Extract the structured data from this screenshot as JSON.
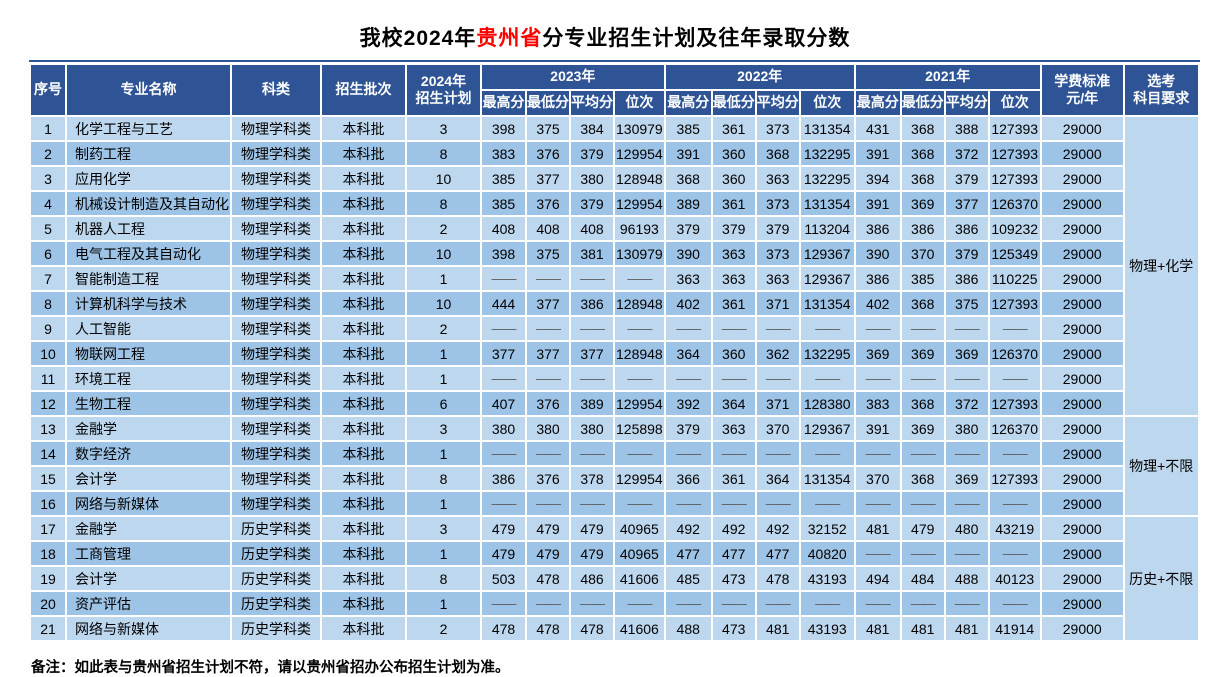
{
  "title": {
    "prefix": "我校2024年",
    "highlight": "贵州省",
    "suffix": "分专业招生计划及往年录取分数"
  },
  "footnote": "备注：如此表与贵州省招生计划不符，请以贵州省招办公布招生计划为准。",
  "colors": {
    "header_bg": "#2F5496",
    "row_light": "#BDD7EE",
    "row_dark": "#9DC3E6",
    "title_highlight": "#FF0000",
    "dash_text": "#595959"
  },
  "table": {
    "dash": "——",
    "headers": {
      "seq": "序号",
      "major": "专业名称",
      "category": "科类",
      "batch": "招生批次",
      "plan_line1": "2024年",
      "plan_line2": "招生计划",
      "year_groups": [
        "2023年",
        "2022年",
        "2021年"
      ],
      "score_cols": [
        "最高分",
        "最低分",
        "平均分",
        "位次"
      ],
      "tuition_line1": "学费标准",
      "tuition_line2": "元/年",
      "subject_line1": "选考",
      "subject_line2": "科目要求"
    },
    "subject_groups": [
      {
        "row_start": 1,
        "row_span": 12,
        "label": "物理+化学"
      },
      {
        "row_start": 13,
        "row_span": 4,
        "label": "物理+不限"
      },
      {
        "row_start": 17,
        "row_span": 5,
        "label": "历史+不限"
      }
    ],
    "rows": [
      {
        "seq": "1",
        "major": "化学工程与工艺",
        "category": "物理学科类",
        "batch": "本科批",
        "plan": "3",
        "y2023": [
          "398",
          "375",
          "384",
          "130979"
        ],
        "y2022": [
          "385",
          "361",
          "373",
          "131354"
        ],
        "y2021": [
          "431",
          "368",
          "388",
          "127393"
        ],
        "tuition": "29000"
      },
      {
        "seq": "2",
        "major": "制药工程",
        "category": "物理学科类",
        "batch": "本科批",
        "plan": "8",
        "y2023": [
          "383",
          "376",
          "379",
          "129954"
        ],
        "y2022": [
          "391",
          "360",
          "368",
          "132295"
        ],
        "y2021": [
          "391",
          "368",
          "372",
          "127393"
        ],
        "tuition": "29000"
      },
      {
        "seq": "3",
        "major": "应用化学",
        "category": "物理学科类",
        "batch": "本科批",
        "plan": "10",
        "y2023": [
          "385",
          "377",
          "380",
          "128948"
        ],
        "y2022": [
          "368",
          "360",
          "363",
          "132295"
        ],
        "y2021": [
          "394",
          "368",
          "379",
          "127393"
        ],
        "tuition": "29000"
      },
      {
        "seq": "4",
        "major": "机械设计制造及其自动化",
        "category": "物理学科类",
        "batch": "本科批",
        "plan": "8",
        "y2023": [
          "385",
          "376",
          "379",
          "129954"
        ],
        "y2022": [
          "389",
          "361",
          "373",
          "131354"
        ],
        "y2021": [
          "391",
          "369",
          "377",
          "126370"
        ],
        "tuition": "29000"
      },
      {
        "seq": "5",
        "major": "机器人工程",
        "category": "物理学科类",
        "batch": "本科批",
        "plan": "2",
        "y2023": [
          "408",
          "408",
          "408",
          "96193"
        ],
        "y2022": [
          "379",
          "379",
          "379",
          "113204"
        ],
        "y2021": [
          "386",
          "386",
          "386",
          "109232"
        ],
        "tuition": "29000"
      },
      {
        "seq": "6",
        "major": "电气工程及其自动化",
        "category": "物理学科类",
        "batch": "本科批",
        "plan": "10",
        "y2023": [
          "398",
          "375",
          "381",
          "130979"
        ],
        "y2022": [
          "390",
          "363",
          "373",
          "129367"
        ],
        "y2021": [
          "390",
          "370",
          "379",
          "125349"
        ],
        "tuition": "29000"
      },
      {
        "seq": "7",
        "major": "智能制造工程",
        "category": "物理学科类",
        "batch": "本科批",
        "plan": "1",
        "y2023": [
          "——",
          "——",
          "——",
          "——"
        ],
        "y2022": [
          "363",
          "363",
          "363",
          "129367"
        ],
        "y2021": [
          "386",
          "385",
          "386",
          "110225"
        ],
        "tuition": "29000"
      },
      {
        "seq": "8",
        "major": "计算机科学与技术",
        "category": "物理学科类",
        "batch": "本科批",
        "plan": "10",
        "y2023": [
          "444",
          "377",
          "386",
          "128948"
        ],
        "y2022": [
          "402",
          "361",
          "371",
          "131354"
        ],
        "y2021": [
          "402",
          "368",
          "375",
          "127393"
        ],
        "tuition": "29000"
      },
      {
        "seq": "9",
        "major": "人工智能",
        "category": "物理学科类",
        "batch": "本科批",
        "plan": "2",
        "y2023": [
          "——",
          "——",
          "——",
          "——"
        ],
        "y2022": [
          "——",
          "——",
          "——",
          "——"
        ],
        "y2021": [
          "——",
          "——",
          "——",
          "——"
        ],
        "tuition": "29000"
      },
      {
        "seq": "10",
        "major": "物联网工程",
        "category": "物理学科类",
        "batch": "本科批",
        "plan": "1",
        "y2023": [
          "377",
          "377",
          "377",
          "128948"
        ],
        "y2022": [
          "364",
          "360",
          "362",
          "132295"
        ],
        "y2021": [
          "369",
          "369",
          "369",
          "126370"
        ],
        "tuition": "29000"
      },
      {
        "seq": "11",
        "major": "环境工程",
        "category": "物理学科类",
        "batch": "本科批",
        "plan": "1",
        "y2023": [
          "——",
          "——",
          "——",
          "——"
        ],
        "y2022": [
          "——",
          "——",
          "——",
          "——"
        ],
        "y2021": [
          "——",
          "——",
          "——",
          "——"
        ],
        "tuition": "29000"
      },
      {
        "seq": "12",
        "major": "生物工程",
        "category": "物理学科类",
        "batch": "本科批",
        "plan": "6",
        "y2023": [
          "407",
          "376",
          "389",
          "129954"
        ],
        "y2022": [
          "392",
          "364",
          "371",
          "128380"
        ],
        "y2021": [
          "383",
          "368",
          "372",
          "127393"
        ],
        "tuition": "29000"
      },
      {
        "seq": "13",
        "major": "金融学",
        "category": "物理学科类",
        "batch": "本科批",
        "plan": "3",
        "y2023": [
          "380",
          "380",
          "380",
          "125898"
        ],
        "y2022": [
          "379",
          "363",
          "370",
          "129367"
        ],
        "y2021": [
          "391",
          "369",
          "380",
          "126370"
        ],
        "tuition": "29000"
      },
      {
        "seq": "14",
        "major": "数字经济",
        "category": "物理学科类",
        "batch": "本科批",
        "plan": "1",
        "y2023": [
          "——",
          "——",
          "——",
          "——"
        ],
        "y2022": [
          "——",
          "——",
          "——",
          "——"
        ],
        "y2021": [
          "——",
          "——",
          "——",
          "——"
        ],
        "tuition": "29000"
      },
      {
        "seq": "15",
        "major": "会计学",
        "category": "物理学科类",
        "batch": "本科批",
        "plan": "8",
        "y2023": [
          "386",
          "376",
          "378",
          "129954"
        ],
        "y2022": [
          "366",
          "361",
          "364",
          "131354"
        ],
        "y2021": [
          "370",
          "368",
          "369",
          "127393"
        ],
        "tuition": "29000"
      },
      {
        "seq": "16",
        "major": "网络与新媒体",
        "category": "物理学科类",
        "batch": "本科批",
        "plan": "1",
        "y2023": [
          "——",
          "——",
          "——",
          "——"
        ],
        "y2022": [
          "——",
          "——",
          "——",
          "——"
        ],
        "y2021": [
          "——",
          "——",
          "——",
          "——"
        ],
        "tuition": "29000"
      },
      {
        "seq": "17",
        "major": "金融学",
        "category": "历史学科类",
        "batch": "本科批",
        "plan": "3",
        "y2023": [
          "479",
          "479",
          "479",
          "40965"
        ],
        "y2022": [
          "492",
          "492",
          "492",
          "32152"
        ],
        "y2021": [
          "481",
          "479",
          "480",
          "43219"
        ],
        "tuition": "29000"
      },
      {
        "seq": "18",
        "major": "工商管理",
        "category": "历史学科类",
        "batch": "本科批",
        "plan": "1",
        "y2023": [
          "479",
          "479",
          "479",
          "40965"
        ],
        "y2022": [
          "477",
          "477",
          "477",
          "40820"
        ],
        "y2021": [
          "——",
          "——",
          "——",
          "——"
        ],
        "tuition": "29000"
      },
      {
        "seq": "19",
        "major": "会计学",
        "category": "历史学科类",
        "batch": "本科批",
        "plan": "8",
        "y2023": [
          "503",
          "478",
          "486",
          "41606"
        ],
        "y2022": [
          "485",
          "473",
          "478",
          "43193"
        ],
        "y2021": [
          "494",
          "484",
          "488",
          "40123"
        ],
        "tuition": "29000"
      },
      {
        "seq": "20",
        "major": "资产评估",
        "category": "历史学科类",
        "batch": "本科批",
        "plan": "1",
        "y2023": [
          "——",
          "——",
          "——",
          "——"
        ],
        "y2022": [
          "——",
          "——",
          "——",
          "——"
        ],
        "y2021": [
          "——",
          "——",
          "——",
          "——"
        ],
        "tuition": "29000"
      },
      {
        "seq": "21",
        "major": "网络与新媒体",
        "category": "历史学科类",
        "batch": "本科批",
        "plan": "2",
        "y2023": [
          "478",
          "478",
          "478",
          "41606"
        ],
        "y2022": [
          "488",
          "473",
          "481",
          "43193"
        ],
        "y2021": [
          "481",
          "481",
          "481",
          "41914"
        ],
        "tuition": "29000"
      }
    ]
  }
}
